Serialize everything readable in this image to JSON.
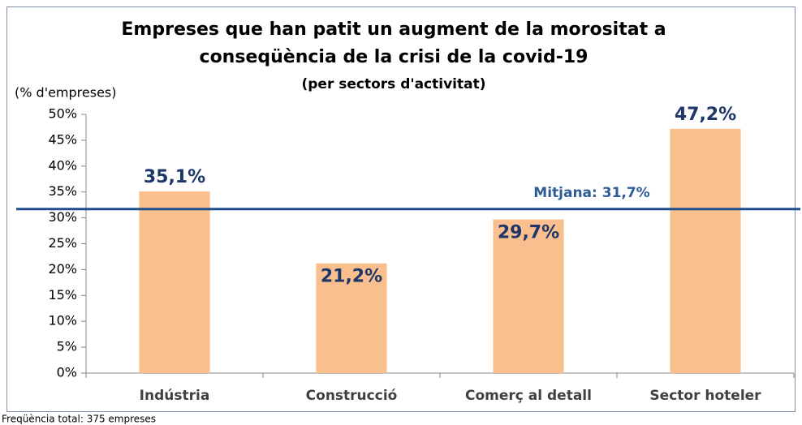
{
  "chart_data": {
    "type": "bar",
    "title": [
      "Empreses que han patit un augment de la morositat a",
      "conseqüència de la crisi de la covid-19"
    ],
    "subtitle": "(per sectors d'activitat)",
    "y_label": "(% d'empreses)",
    "categories": [
      "Indústria",
      "Construcció",
      "Comerç al detall",
      "Sector hoteler"
    ],
    "values": [
      35.1,
      21.2,
      29.7,
      47.2
    ],
    "value_labels": [
      "35,1%",
      "21,2%",
      "29,7%",
      "47,2%"
    ],
    "color": "#f9bf8f",
    "mean": 31.7,
    "mean_label": "Mitjana: 31,7%",
    "ylim": [
      0,
      50
    ],
    "yticks": [
      {
        "value": 0,
        "label": "0%"
      },
      {
        "value": 5,
        "label": "5%"
      },
      {
        "value": 10,
        "label": "10%"
      },
      {
        "value": 15,
        "label": "15%"
      },
      {
        "value": 20,
        "label": "20%"
      },
      {
        "value": 25,
        "label": "25%"
      },
      {
        "value": 30,
        "label": "30%"
      },
      {
        "value": 35,
        "label": "35%"
      },
      {
        "value": 40,
        "label": "40%"
      },
      {
        "value": 45,
        "label": "45%"
      },
      {
        "value": 50,
        "label": "50%"
      }
    ],
    "footnote": "Freqüència total: 375 empreses"
  }
}
